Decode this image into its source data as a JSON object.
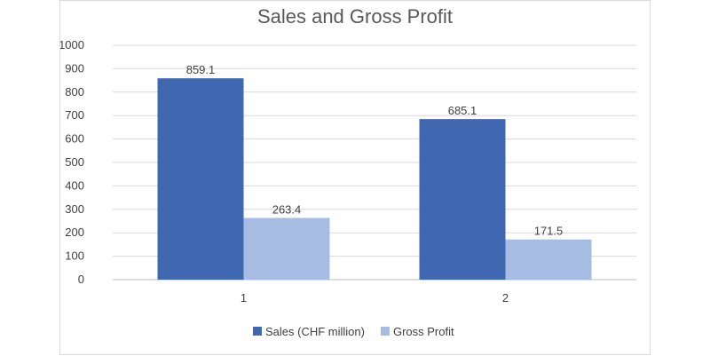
{
  "chart_data": {
    "type": "bar",
    "title": "Sales and Gross Profit",
    "categories": [
      "1",
      "2"
    ],
    "series": [
      {
        "name": "Sales (CHF million)",
        "values": [
          859.1,
          685.1
        ],
        "color": "#4068B0"
      },
      {
        "name": "Gross Profit",
        "values": [
          263.4,
          171.5
        ],
        "color": "#A6BCE3"
      }
    ],
    "data_labels": [
      [
        "859.1",
        "685.1"
      ],
      [
        "263.4",
        "171.5"
      ]
    ],
    "ylim": [
      0,
      1000
    ],
    "yticks": [
      "0",
      "100",
      "200",
      "300",
      "400",
      "500",
      "600",
      "700",
      "800",
      "900",
      "1000"
    ],
    "grid": true,
    "legend": "bottom",
    "gridline_color": "#d9d9d9",
    "axis_line_color": "#bfbfbf"
  }
}
